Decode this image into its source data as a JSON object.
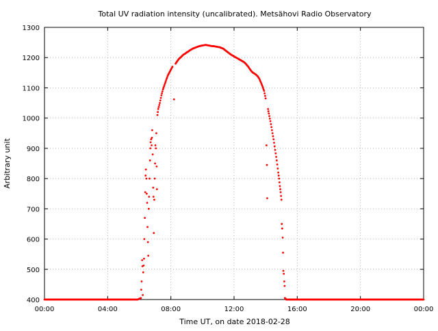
{
  "chart_data": {
    "type": "scatter",
    "title": "Total UV radiation intensity (uncalibrated). Metsähovi Radio Observatory",
    "xlabel": "Time UT, on date 2018-02-28",
    "ylabel": "Arbitrary unit",
    "xlim": [
      0,
      24
    ],
    "ylim": [
      400,
      1300
    ],
    "x_unit": "hours UT",
    "xticks": [
      {
        "value": 0,
        "label": "00:00"
      },
      {
        "value": 4,
        "label": "04:00"
      },
      {
        "value": 8,
        "label": "08:00"
      },
      {
        "value": 12,
        "label": "12:00"
      },
      {
        "value": 16,
        "label": "16:00"
      },
      {
        "value": 20,
        "label": "20:00"
      },
      {
        "value": 24,
        "label": "00:00"
      }
    ],
    "yticks": [
      {
        "value": 400,
        "label": "400"
      },
      {
        "value": 500,
        "label": "500"
      },
      {
        "value": 600,
        "label": "600"
      },
      {
        "value": 700,
        "label": "700"
      },
      {
        "value": 800,
        "label": "800"
      },
      {
        "value": 900,
        "label": "900"
      },
      {
        "value": 1000,
        "label": "1000"
      },
      {
        "value": 1100,
        "label": "1100"
      },
      {
        "value": 1200,
        "label": "1200"
      },
      {
        "value": 1300,
        "label": "1300"
      }
    ],
    "grid": true,
    "grid_style": "dotted",
    "legend": "none",
    "series": [
      {
        "color": "#ff0000",
        "marker": "dot",
        "points": [
          [
            0.0,
            400
          ],
          [
            0.5,
            400
          ],
          [
            1.0,
            400
          ],
          [
            1.5,
            400
          ],
          [
            2.0,
            400
          ],
          [
            2.5,
            400
          ],
          [
            3.0,
            400
          ],
          [
            3.5,
            400
          ],
          [
            4.0,
            400
          ],
          [
            4.5,
            400
          ],
          [
            5.0,
            400
          ],
          [
            5.5,
            400
          ],
          [
            5.9,
            400
          ],
          [
            6.1,
            405
          ],
          [
            6.15,
            460
          ],
          [
            6.18,
            530
          ],
          [
            6.2,
            510
          ],
          [
            6.22,
            415
          ],
          [
            6.25,
            490
          ],
          [
            6.3,
            535
          ],
          [
            6.32,
            600
          ],
          [
            6.35,
            670
          ],
          [
            6.38,
            755
          ],
          [
            6.4,
            810
          ],
          [
            6.42,
            830
          ],
          [
            6.45,
            800
          ],
          [
            6.47,
            750
          ],
          [
            6.5,
            720
          ],
          [
            6.52,
            640
          ],
          [
            6.55,
            590
          ],
          [
            6.57,
            545
          ],
          [
            6.6,
            700
          ],
          [
            6.62,
            740
          ],
          [
            6.65,
            800
          ],
          [
            6.68,
            860
          ],
          [
            6.7,
            900
          ],
          [
            6.72,
            920
          ],
          [
            6.75,
            930
          ],
          [
            6.78,
            910
          ],
          [
            6.8,
            935
          ],
          [
            6.82,
            960
          ],
          [
            6.85,
            880
          ],
          [
            6.88,
            770
          ],
          [
            6.9,
            740
          ],
          [
            6.92,
            620
          ],
          [
            6.95,
            730
          ],
          [
            6.98,
            800
          ],
          [
            7.0,
            850
          ],
          [
            7.02,
            910
          ],
          [
            7.05,
            900
          ],
          [
            7.08,
            950
          ],
          [
            7.1,
            840
          ],
          [
            7.12,
            765
          ],
          [
            7.15,
            1010
          ],
          [
            7.2,
            1030
          ],
          [
            7.3,
            1050
          ],
          [
            7.4,
            1075
          ],
          [
            7.5,
            1095
          ],
          [
            7.6,
            1110
          ],
          [
            7.7,
            1125
          ],
          [
            7.8,
            1140
          ],
          [
            7.9,
            1150
          ],
          [
            8.0,
            1160
          ],
          [
            8.1,
            1170
          ],
          [
            8.2,
            1062
          ],
          [
            8.3,
            1180
          ],
          [
            8.4,
            1188
          ],
          [
            8.5,
            1195
          ],
          [
            8.6,
            1200
          ],
          [
            8.7,
            1205
          ],
          [
            8.8,
            1210
          ],
          [
            8.9,
            1213
          ],
          [
            9.0,
            1217
          ],
          [
            9.1,
            1220
          ],
          [
            9.2,
            1224
          ],
          [
            9.3,
            1227
          ],
          [
            9.4,
            1230
          ],
          [
            9.5,
            1232
          ],
          [
            9.6,
            1234
          ],
          [
            9.7,
            1236
          ],
          [
            9.8,
            1238
          ],
          [
            9.9,
            1239
          ],
          [
            10.0,
            1240
          ],
          [
            10.1,
            1241
          ],
          [
            10.2,
            1242
          ],
          [
            10.3,
            1241
          ],
          [
            10.4,
            1240
          ],
          [
            10.5,
            1239
          ],
          [
            10.6,
            1238
          ],
          [
            10.7,
            1238
          ],
          [
            10.8,
            1237
          ],
          [
            10.9,
            1236
          ],
          [
            11.0,
            1235
          ],
          [
            11.1,
            1234
          ],
          [
            11.2,
            1232
          ],
          [
            11.3,
            1230
          ],
          [
            11.4,
            1226
          ],
          [
            11.5,
            1222
          ],
          [
            11.6,
            1218
          ],
          [
            11.7,
            1214
          ],
          [
            11.8,
            1210
          ],
          [
            11.9,
            1207
          ],
          [
            12.0,
            1204
          ],
          [
            12.1,
            1201
          ],
          [
            12.2,
            1198
          ],
          [
            12.3,
            1195
          ],
          [
            12.4,
            1192
          ],
          [
            12.5,
            1189
          ],
          [
            12.6,
            1186
          ],
          [
            12.7,
            1182
          ],
          [
            12.8,
            1176
          ],
          [
            12.9,
            1170
          ],
          [
            13.0,
            1162
          ],
          [
            13.1,
            1155
          ],
          [
            13.2,
            1150
          ],
          [
            13.3,
            1147
          ],
          [
            13.4,
            1143
          ],
          [
            13.5,
            1138
          ],
          [
            13.6,
            1130
          ],
          [
            13.7,
            1118
          ],
          [
            13.8,
            1105
          ],
          [
            13.9,
            1090
          ],
          [
            14.0,
            1065
          ],
          [
            14.05,
            910
          ],
          [
            14.08,
            845
          ],
          [
            14.1,
            735
          ],
          [
            14.15,
            1030
          ],
          [
            14.2,
            1015
          ],
          [
            14.3,
            990
          ],
          [
            14.4,
            960
          ],
          [
            14.5,
            930
          ],
          [
            14.6,
            895
          ],
          [
            14.7,
            860
          ],
          [
            14.8,
            820
          ],
          [
            14.85,
            800
          ],
          [
            14.9,
            775
          ],
          [
            14.95,
            755
          ],
          [
            15.0,
            730
          ],
          [
            15.02,
            650
          ],
          [
            15.05,
            635
          ],
          [
            15.08,
            605
          ],
          [
            15.1,
            555
          ],
          [
            15.12,
            495
          ],
          [
            15.15,
            485
          ],
          [
            15.18,
            460
          ],
          [
            15.2,
            445
          ],
          [
            15.22,
            405
          ],
          [
            15.3,
            400
          ],
          [
            15.5,
            400
          ],
          [
            16.0,
            400
          ],
          [
            16.5,
            400
          ],
          [
            17.0,
            400
          ],
          [
            17.5,
            400
          ],
          [
            18.0,
            400
          ],
          [
            18.5,
            400
          ],
          [
            19.0,
            400
          ],
          [
            19.5,
            400
          ],
          [
            20.0,
            400
          ],
          [
            20.5,
            400
          ],
          [
            21.0,
            400
          ],
          [
            21.5,
            400
          ],
          [
            22.0,
            400
          ],
          [
            22.5,
            400
          ],
          [
            23.0,
            400
          ],
          [
            23.5,
            400
          ],
          [
            24.0,
            400
          ]
        ]
      }
    ]
  }
}
